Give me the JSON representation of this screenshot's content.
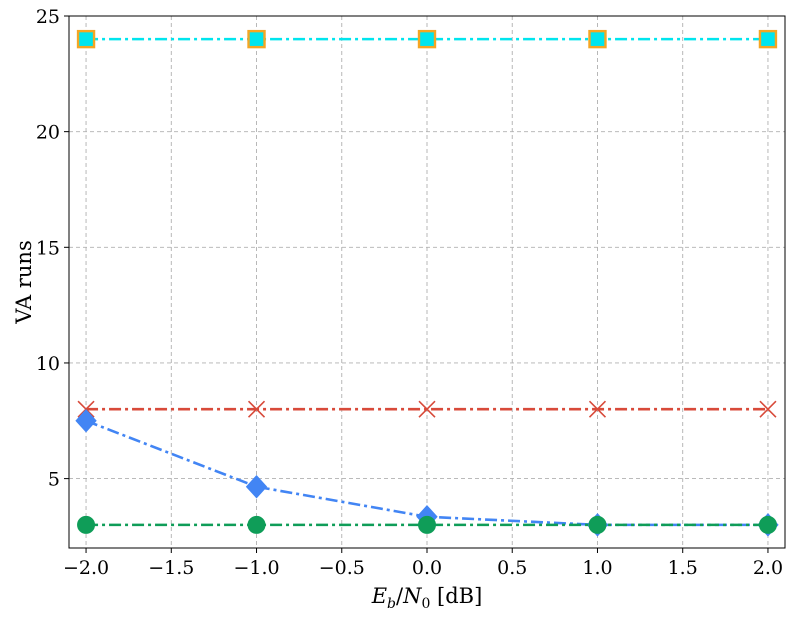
{
  "chart_data": {
    "type": "line",
    "xlabel_parts": {
      "E": "E",
      "b": "b",
      "slash": "/",
      "N": "N",
      "zero": "0",
      "unit": " [dB]"
    },
    "ylabel": "VA  runs",
    "xlim": [
      -2.1,
      2.1
    ],
    "ylim": [
      2.0,
      25.0
    ],
    "x_ticks": [
      -2.0,
      -1.5,
      -1.0,
      -0.5,
      0.0,
      0.5,
      1.0,
      1.5,
      2.0
    ],
    "x_tick_labels": [
      "−2.0",
      "−1.5",
      "−1.0",
      "−0.5",
      "0.0",
      "0.5",
      "1.0",
      "1.5",
      "2.0"
    ],
    "y_ticks": [
      5,
      10,
      15,
      20,
      25
    ],
    "y_tick_labels": [
      "5",
      "10",
      "15",
      "20",
      "25"
    ],
    "grid": true,
    "x": [
      -2.0,
      -1.0,
      0.0,
      1.0,
      2.0
    ],
    "series": [
      {
        "key": "cyan",
        "values": [
          24,
          24,
          24,
          24,
          24
        ],
        "color": "#00e5ee",
        "marker": "square",
        "marker_face": "#00e5ee",
        "marker_edge": "#f5a623"
      },
      {
        "key": "red",
        "values": [
          8,
          8,
          8,
          8,
          8
        ],
        "color": "#d84a3a",
        "marker": "x",
        "marker_face": "none",
        "marker_edge": "#d84a3a"
      },
      {
        "key": "blue",
        "values": [
          7.5,
          4.65,
          3.35,
          3.0,
          3.0
        ],
        "color": "#4285f4",
        "marker": "diamond",
        "marker_face": "#4285f4",
        "marker_edge": "#4285f4"
      },
      {
        "key": "green",
        "values": [
          3,
          3,
          3,
          3,
          3
        ],
        "color": "#0f9d58",
        "marker": "circle",
        "marker_face": "#0f9d58",
        "marker_edge": "#0f9d58"
      }
    ]
  }
}
